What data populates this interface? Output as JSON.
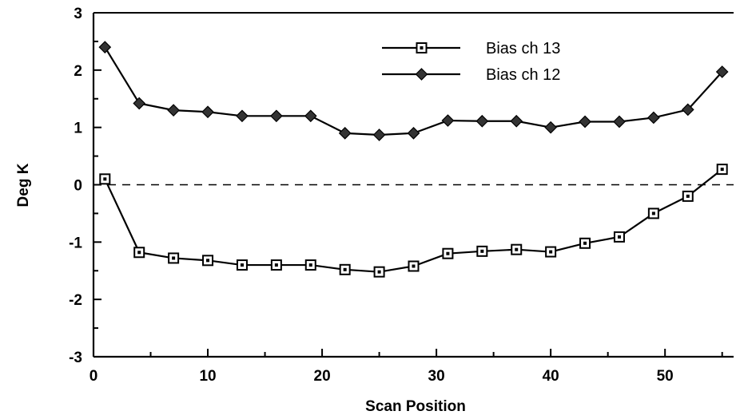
{
  "chart_data": {
    "type": "line",
    "title": "",
    "xlabel": "Scan Position",
    "ylabel": "Deg K",
    "xlim": [
      0,
      56
    ],
    "ylim": [
      -3,
      3
    ],
    "x_ticks": [
      0,
      10,
      20,
      30,
      40,
      50
    ],
    "y_ticks": [
      3,
      2,
      1,
      0,
      -1,
      -2,
      -3
    ],
    "x_tick_labels": [
      "0",
      "10",
      "20",
      "30",
      "40",
      "50"
    ],
    "y_tick_labels": [
      "3",
      "2",
      "1",
      "0",
      "-1",
      "-2",
      "-3"
    ],
    "grid": false,
    "legend_position": "top-right",
    "reference_line": {
      "y": 0,
      "style": "dashed"
    },
    "x": [
      1,
      4,
      7,
      10,
      13,
      16,
      19,
      22,
      25,
      28,
      31,
      34,
      37,
      40,
      43,
      46,
      49,
      52,
      55
    ],
    "series": [
      {
        "name": "Bias ch 13",
        "marker": "square",
        "values": [
          0.1,
          -1.18,
          -1.28,
          -1.32,
          -1.4,
          -1.4,
          -1.4,
          -1.48,
          -1.52,
          -1.42,
          -1.2,
          -1.16,
          -1.13,
          -1.17,
          -1.02,
          -0.91,
          -0.5,
          -0.2,
          0.27
        ]
      },
      {
        "name": "Bias ch 12",
        "marker": "diamond",
        "values": [
          2.4,
          1.42,
          1.3,
          1.27,
          1.2,
          1.2,
          1.2,
          0.9,
          0.87,
          0.9,
          1.12,
          1.11,
          1.11,
          1.0,
          1.1,
          1.1,
          1.17,
          1.31,
          1.97
        ]
      }
    ]
  }
}
